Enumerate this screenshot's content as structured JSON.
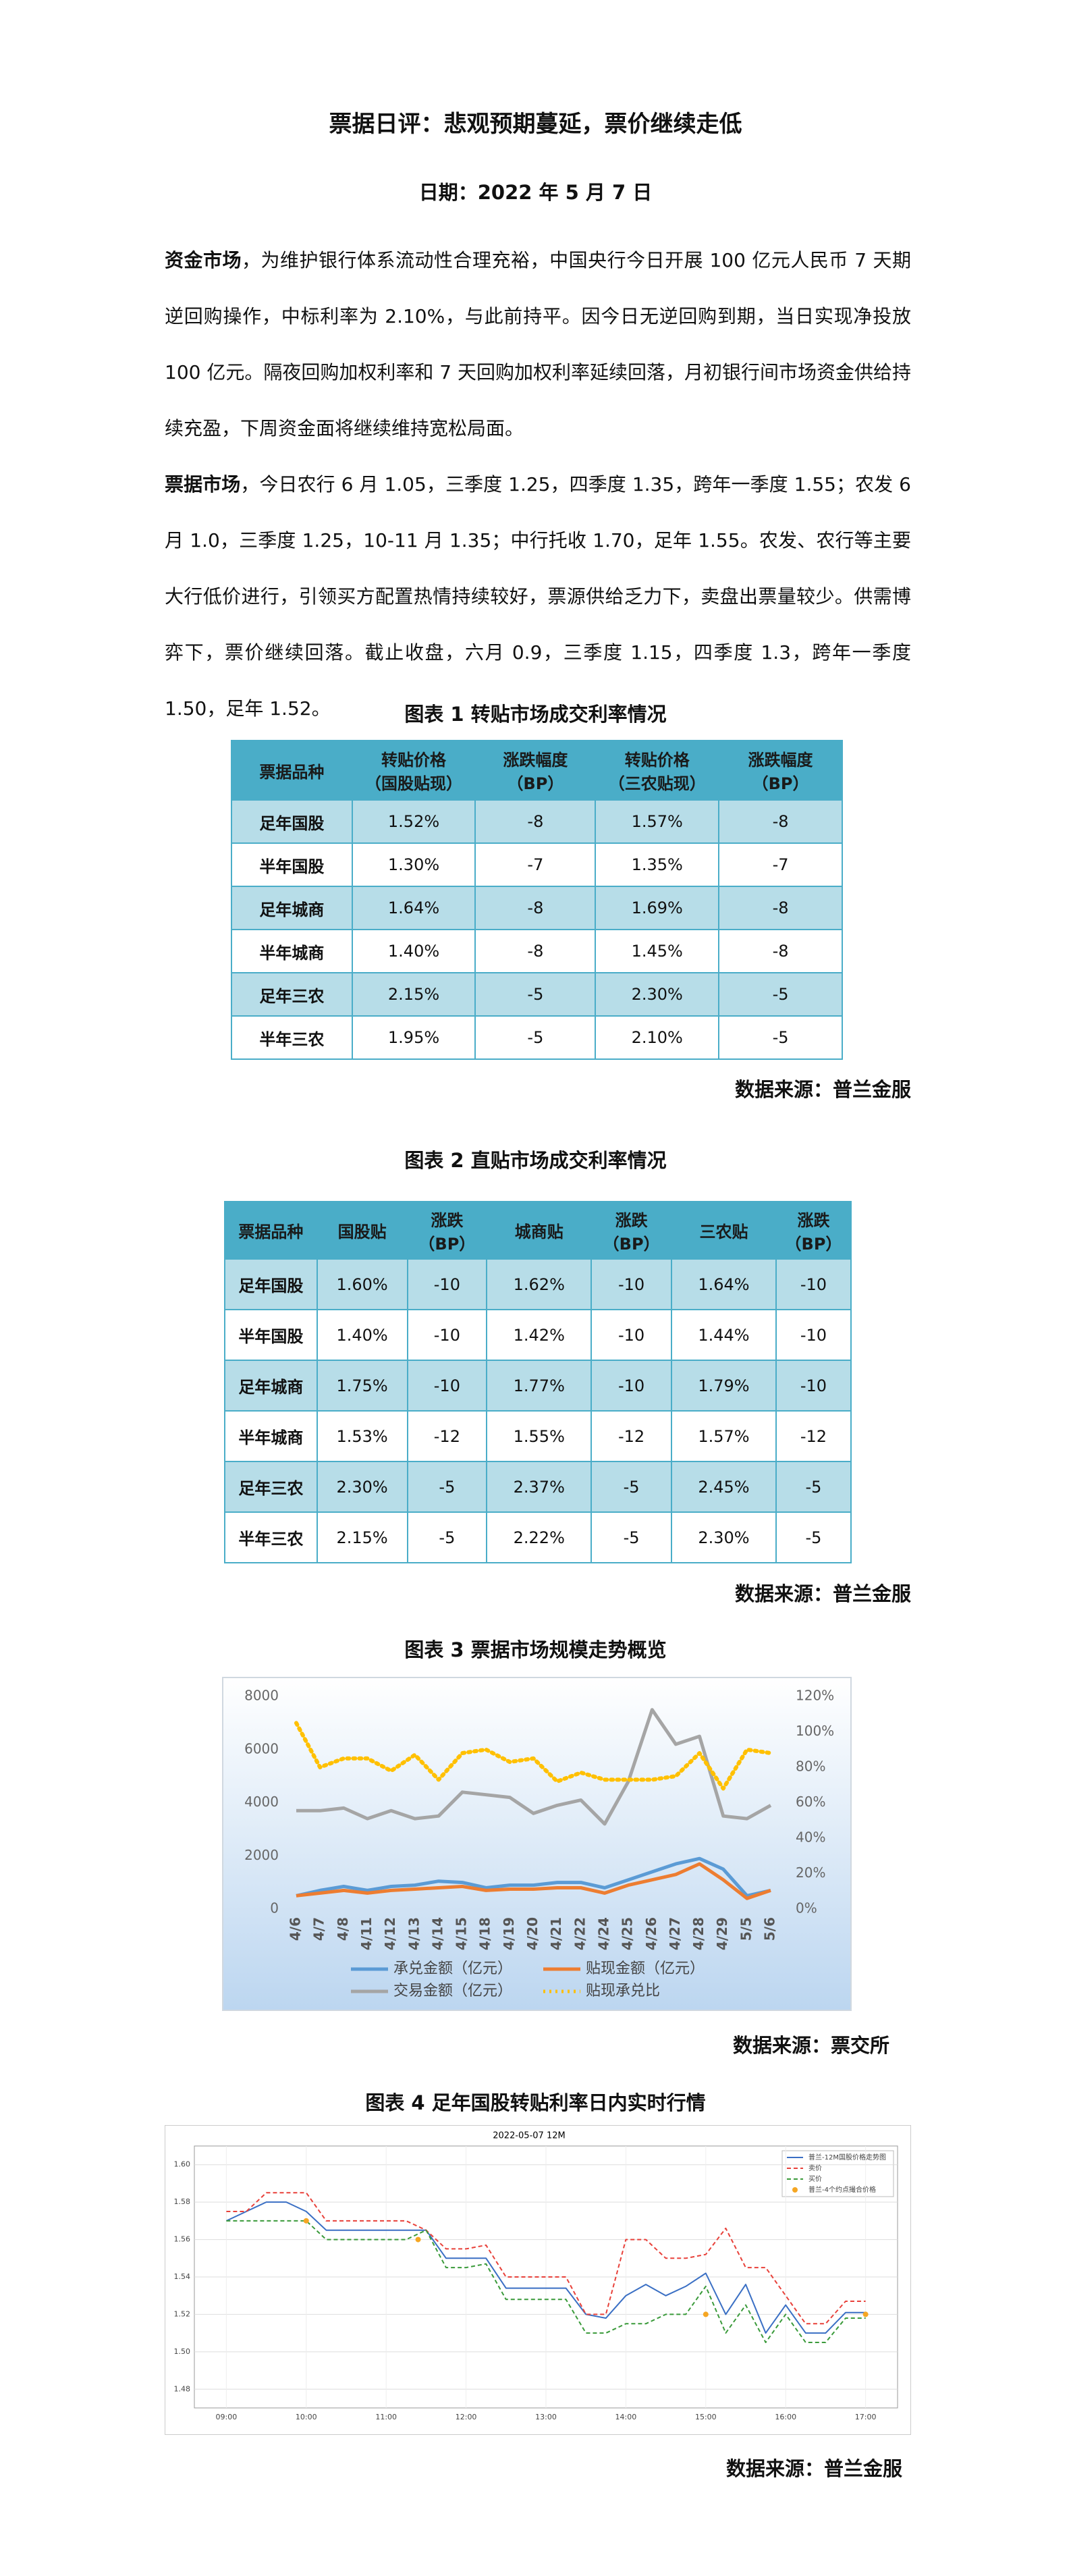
{
  "header": {
    "title": "票据日评：悲观预期蔓延，票价继续走低",
    "date": "日期：2022 年 5 月 7 日"
  },
  "paragraphs": [
    {
      "lead": "资金市场",
      "text": "，为维护银行体系流动性合理充裕，中国央行今日开展 100 亿元人民币 7 天期逆回购操作，中标利率为 2.10%，与此前持平。因今日无逆回购到期，当日实现净投放 100 亿元。隔夜回购加权利率和 7 天回购加权利率延续回落，月初银行间市场资金供给持续充盈，下周资金面将继续维持宽松局面。"
    },
    {
      "lead": "票据市场",
      "text": "，今日农行 6 月 1.05，三季度 1.25，四季度 1.35，跨年一季度 1.55；农发 6 月 1.0，三季度 1.25，10-11 月 1.35；中行托收 1.70，足年 1.55。农发、农行等主要大行低价进行，引领买方配置热情持续较好，票源供给乏力下，卖盘出票量较少。供需博弈下，票价继续回落。截止收盘，六月 0.9，三季度 1.15，四季度 1.3，跨年一季度 1.50，足年 1.52。"
    }
  ],
  "table1": {
    "caption": "图表 1  转贴市场成交利率情况",
    "columns": [
      "票据品种",
      "转贴价格\n（国股贴现）",
      "涨跌幅度\n（BP）",
      "转贴价格\n（三农贴现）",
      "涨跌幅度\n（BP）"
    ],
    "rows": [
      [
        "足年国股",
        "1.52%",
        "-8",
        "1.57%",
        "-8"
      ],
      [
        "半年国股",
        "1.30%",
        "-7",
        "1.35%",
        "-7"
      ],
      [
        "足年城商",
        "1.64%",
        "-8",
        "1.69%",
        "-8"
      ],
      [
        "半年城商",
        "1.40%",
        "-8",
        "1.45%",
        "-8"
      ],
      [
        "足年三农",
        "2.15%",
        "-5",
        "2.30%",
        "-5"
      ],
      [
        "半年三农",
        "1.95%",
        "-5",
        "2.10%",
        "-5"
      ]
    ],
    "source": "数据来源：普兰金服"
  },
  "table2": {
    "caption": "图表 2  直贴市场成交利率情况",
    "columns": [
      "票据品种",
      "国股贴",
      "涨跌\n（BP）",
      "城商贴",
      "涨跌\n（BP）",
      "三农贴",
      "涨跌\n（BP）"
    ],
    "rows": [
      [
        "足年国股",
        "1.60%",
        "-10",
        "1.62%",
        "-10",
        "1.64%",
        "-10"
      ],
      [
        "半年国股",
        "1.40%",
        "-10",
        "1.42%",
        "-10",
        "1.44%",
        "-10"
      ],
      [
        "足年城商",
        "1.75%",
        "-10",
        "1.77%",
        "-10",
        "1.79%",
        "-10"
      ],
      [
        "半年城商",
        "1.53%",
        "-12",
        "1.55%",
        "-12",
        "1.57%",
        "-12"
      ],
      [
        "足年三农",
        "2.30%",
        "-5",
        "2.37%",
        "-5",
        "2.45%",
        "-5"
      ],
      [
        "半年三农",
        "2.15%",
        "-5",
        "2.22%",
        "-5",
        "2.30%",
        "-5"
      ]
    ],
    "source": "数据来源：普兰金服"
  },
  "chart_data": [
    {
      "type": "line",
      "caption": "图表 3  票据市场规模走势概览",
      "source": "数据来源：票交所",
      "categories": [
        "4/6",
        "4/7",
        "4/8",
        "4/11",
        "4/12",
        "4/13",
        "4/14",
        "4/15",
        "4/18",
        "4/19",
        "4/20",
        "4/21",
        "4/22",
        "4/24",
        "4/25",
        "4/26",
        "4/27",
        "4/28",
        "4/29",
        "5/5",
        "5/6"
      ],
      "series": [
        {
          "name": "承兑金额（亿元）",
          "color": "#5b9bd5",
          "values": [
            500,
            700,
            850,
            700,
            850,
            900,
            1050,
            1000,
            800,
            900,
            900,
            1000,
            1000,
            800,
            1100,
            1400,
            1700,
            1900,
            1500,
            500,
            700
          ]
        },
        {
          "name": "贴现金额（亿元）",
          "color": "#ed7d31",
          "values": [
            500,
            600,
            700,
            600,
            700,
            750,
            800,
            850,
            700,
            750,
            750,
            800,
            800,
            600,
            900,
            1100,
            1300,
            1700,
            1100,
            400,
            700
          ]
        },
        {
          "name": "交易金额（亿元）",
          "color": "#a5a5a5",
          "values": [
            3700,
            3700,
            3800,
            3400,
            3700,
            3400,
            3500,
            4400,
            4300,
            4200,
            3600,
            3900,
            4100,
            3200,
            4800,
            7500,
            6200,
            6500,
            3500,
            3400,
            3900
          ]
        },
        {
          "name": "贴现承兑比",
          "color": "#ffc000",
          "axis": "y2",
          "dash": true,
          "values": [
            105,
            80,
            85,
            85,
            78,
            87,
            73,
            88,
            90,
            83,
            85,
            72,
            77,
            73,
            73,
            73,
            75,
            88,
            68,
            90,
            88
          ]
        }
      ],
      "ylim": [
        0,
        8000
      ],
      "yticks": [
        0,
        2000,
        4000,
        6000,
        8000
      ],
      "y2lim": [
        0,
        120
      ],
      "y2ticks": [
        {
          "value": 0,
          "label": "0%"
        },
        {
          "value": 20,
          "label": "20%"
        },
        {
          "value": 40,
          "label": "40%"
        },
        {
          "value": 60,
          "label": "60%"
        },
        {
          "value": 80,
          "label": "80%"
        },
        {
          "value": 100,
          "label": "100%"
        },
        {
          "value": 120,
          "label": "120%"
        }
      ],
      "grid": false,
      "legend": "bottom"
    },
    {
      "type": "line",
      "caption": "图表 4  足年国股转贴利率日内实时行情",
      "title": "2022-05-07  12M",
      "source": "数据来源：普兰金服",
      "x": [
        9,
        9.25,
        9.5,
        9.75,
        10,
        10.25,
        10.5,
        10.75,
        11,
        11.25,
        11.5,
        11.75,
        12,
        12.25,
        12.5,
        12.75,
        13,
        13.25,
        13.5,
        13.75,
        14,
        14.25,
        14.5,
        14.75,
        15,
        15.25,
        15.5,
        15.75,
        16,
        16.25,
        16.5,
        16.75,
        17
      ],
      "series": [
        {
          "name": "普兰-12M国股价格走势图",
          "color": "#3a6fc4",
          "values": [
            1.57,
            1.575,
            1.58,
            1.58,
            1.575,
            1.565,
            1.565,
            1.565,
            1.565,
            1.565,
            1.565,
            1.55,
            1.55,
            1.55,
            1.534,
            1.534,
            1.534,
            1.534,
            1.52,
            1.518,
            1.53,
            1.536,
            1.53,
            1.535,
            1.542,
            1.52,
            1.536,
            1.51,
            1.525,
            1.51,
            1.51,
            1.521,
            1.521
          ]
        },
        {
          "name": "卖价",
          "color": "#e8413a",
          "dash": true,
          "values": [
            1.575,
            1.575,
            1.585,
            1.585,
            1.585,
            1.57,
            1.57,
            1.57,
            1.57,
            1.57,
            1.565,
            1.555,
            1.555,
            1.557,
            1.54,
            1.54,
            1.54,
            1.54,
            1.52,
            1.52,
            1.56,
            1.56,
            1.55,
            1.55,
            1.552,
            1.566,
            1.545,
            1.545,
            1.53,
            1.515,
            1.515,
            1.527,
            1.527
          ]
        },
        {
          "name": "买价",
          "color": "#3a9a3a",
          "dash": true,
          "values": [
            1.57,
            1.57,
            1.57,
            1.57,
            1.57,
            1.56,
            1.56,
            1.56,
            1.56,
            1.56,
            1.565,
            1.545,
            1.545,
            1.547,
            1.528,
            1.528,
            1.528,
            1.528,
            1.51,
            1.51,
            1.515,
            1.515,
            1.52,
            1.52,
            1.535,
            1.51,
            1.525,
            1.505,
            1.52,
            1.505,
            1.505,
            1.518,
            1.518
          ]
        },
        {
          "name": "普兰-4个约点撮合价格",
          "color": "#f5a623",
          "dots": true,
          "x": [
            10,
            11.4,
            15,
            17
          ],
          "values": [
            1.57,
            1.56,
            1.52,
            1.52
          ]
        }
      ],
      "xlim": [
        8.6,
        17.4
      ],
      "xticks": [
        {
          "value": 9,
          "label": "09:00"
        },
        {
          "value": 10,
          "label": "10:00"
        },
        {
          "value": 11,
          "label": "11:00"
        },
        {
          "value": 12,
          "label": "12:00"
        },
        {
          "value": 13,
          "label": "13:00"
        },
        {
          "value": 14,
          "label": "14:00"
        },
        {
          "value": 15,
          "label": "15:00"
        },
        {
          "value": 16,
          "label": "16:00"
        },
        {
          "value": 17,
          "label": "17:00"
        }
      ],
      "ylim": [
        1.47,
        1.61
      ],
      "yticks": [
        1.48,
        {
          "value": 1.5,
          "label": "1.50"
        },
        1.52,
        1.54,
        1.56,
        1.58,
        {
          "value": 1.6,
          "label": "1.60"
        }
      ],
      "grid": true,
      "legend": "top-right"
    }
  ]
}
